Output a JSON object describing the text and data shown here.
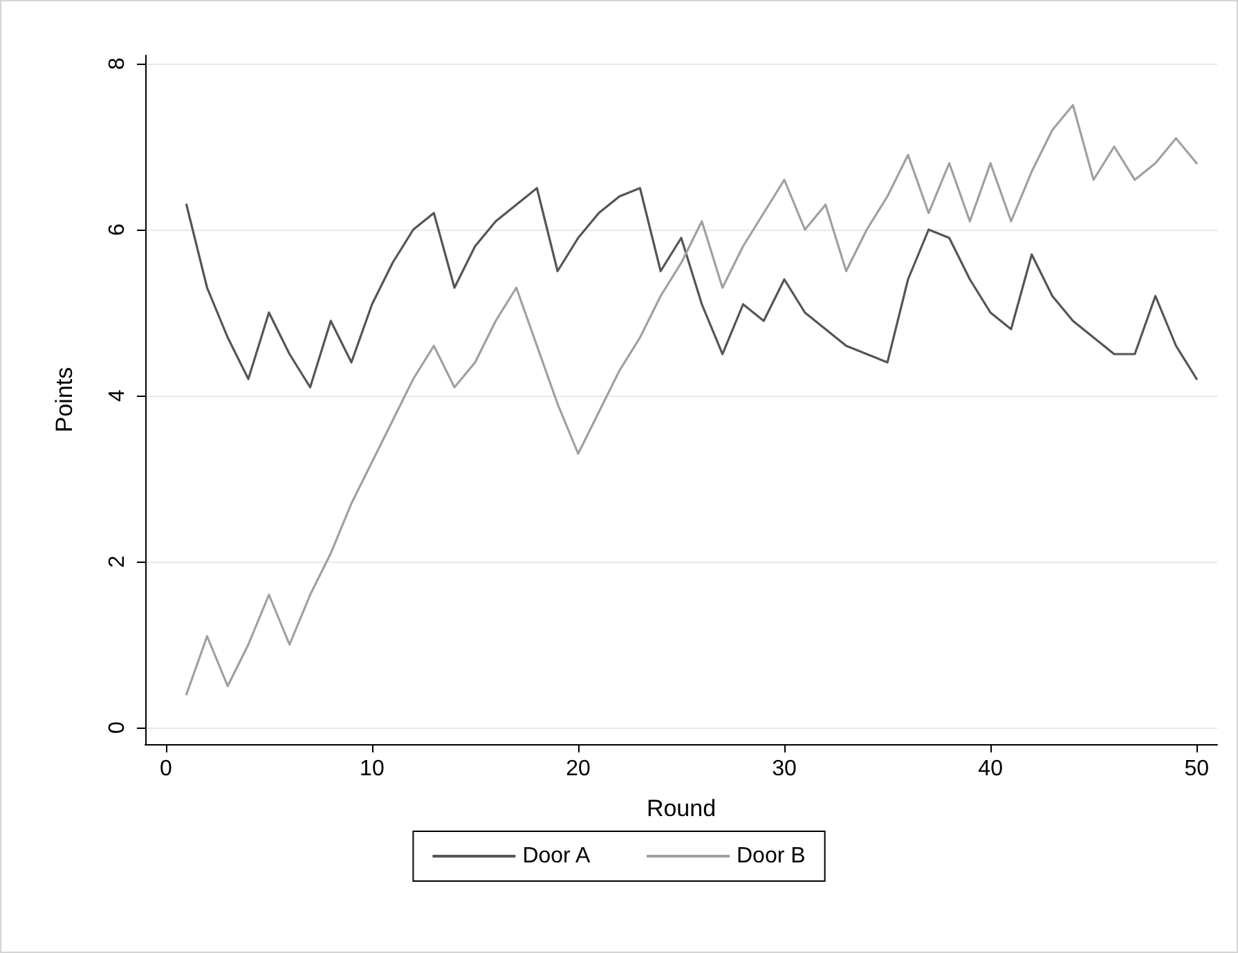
{
  "chart_data": {
    "type": "line",
    "xlabel": "Round",
    "ylabel": "Points",
    "x": [
      1,
      2,
      3,
      4,
      5,
      6,
      7,
      8,
      9,
      10,
      11,
      12,
      13,
      14,
      15,
      16,
      17,
      18,
      19,
      20,
      21,
      22,
      23,
      24,
      25,
      26,
      27,
      28,
      29,
      30,
      31,
      32,
      33,
      34,
      35,
      36,
      37,
      38,
      39,
      40,
      41,
      42,
      43,
      44,
      45,
      46,
      47,
      48,
      49,
      50
    ],
    "series": [
      {
        "name": "Door A",
        "color": "#555555",
        "values": [
          6.3,
          5.3,
          4.7,
          4.2,
          5.0,
          4.5,
          4.1,
          4.9,
          4.4,
          5.1,
          5.6,
          6.0,
          6.2,
          5.3,
          5.8,
          6.1,
          6.3,
          6.5,
          5.5,
          5.9,
          6.2,
          6.4,
          6.5,
          5.5,
          5.9,
          5.1,
          4.5,
          5.1,
          4.9,
          5.4,
          5.0,
          4.8,
          4.6,
          4.5,
          4.4,
          5.4,
          6.0,
          5.9,
          5.4,
          5.0,
          4.8,
          5.7,
          5.2,
          4.9,
          4.7,
          4.5,
          4.5,
          5.2,
          4.6,
          4.2
        ]
      },
      {
        "name": "Door B",
        "color": "#a0a0a0",
        "values": [
          0.4,
          1.1,
          0.5,
          1.0,
          1.6,
          1.0,
          1.6,
          2.1,
          2.7,
          3.2,
          3.7,
          4.2,
          4.6,
          4.1,
          4.4,
          4.9,
          5.3,
          4.6,
          3.9,
          3.3,
          3.8,
          4.3,
          4.7,
          5.2,
          5.6,
          6.1,
          5.3,
          5.8,
          6.2,
          6.6,
          6.0,
          6.3,
          5.5,
          6.0,
          6.4,
          6.9,
          6.2,
          6.8,
          6.1,
          6.8,
          6.1,
          6.7,
          7.2,
          7.5,
          6.6,
          7.0,
          6.6,
          6.8,
          7.1,
          6.8
        ]
      }
    ],
    "xlim": [
      -1,
      51
    ],
    "xticks": [
      0,
      10,
      20,
      30,
      40,
      50
    ],
    "ylim": [
      -0.2,
      8.1
    ],
    "yticks": [
      0,
      2,
      4,
      6,
      8
    ],
    "grid": "y",
    "legend": "bottom",
    "marker": "none",
    "line_style": "solid"
  }
}
